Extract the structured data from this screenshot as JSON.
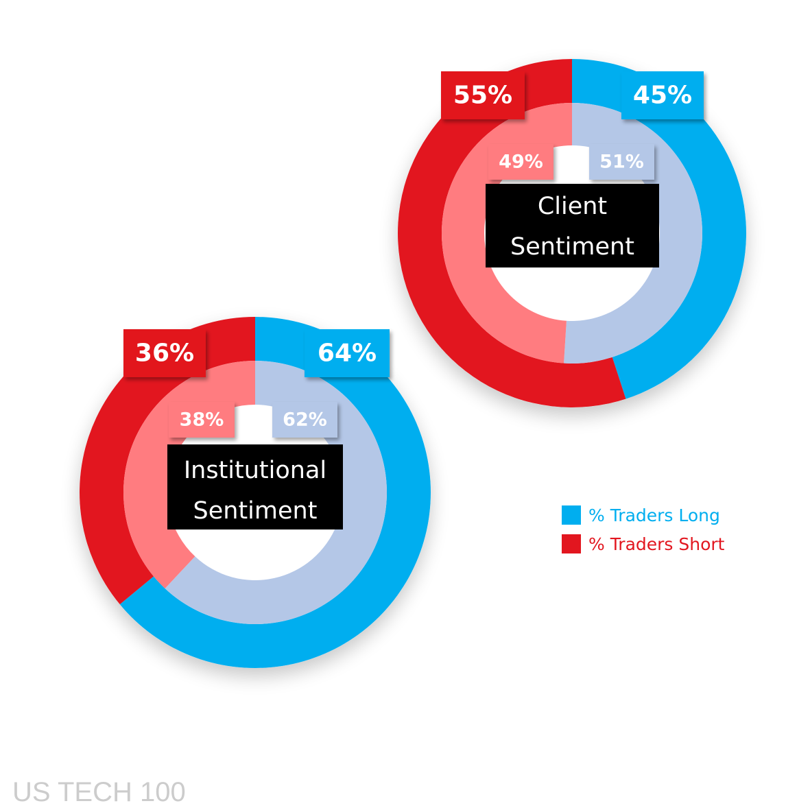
{
  "colors": {
    "long_outer": "#00aeef",
    "short_outer": "#e2161f",
    "long_inner": "#b4c7e7",
    "short_inner": "#ff7c80",
    "center_box": "#000000",
    "footer": "#cccccc"
  },
  "legend": {
    "placement": "right",
    "items": [
      {
        "label": "% Traders Long",
        "color": "#00aeef"
      },
      {
        "label": "% Traders Short",
        "color": "#e2161f"
      }
    ]
  },
  "footer": {
    "label": "US TECH 100"
  },
  "chart_data": [
    {
      "type": "pie",
      "subtype": "nested-donut",
      "center_label": [
        "Client",
        "Sentiment"
      ],
      "categories": [
        "% Traders Long",
        "% Traders Short"
      ],
      "series": [
        {
          "ring": "outer",
          "values": [
            45,
            55
          ],
          "labels": [
            "45%",
            "55%"
          ]
        },
        {
          "ring": "inner",
          "values": [
            51,
            49
          ],
          "labels": [
            "51%",
            "49%"
          ]
        }
      ]
    },
    {
      "type": "pie",
      "subtype": "nested-donut",
      "center_label": [
        "Institutional",
        "Sentiment"
      ],
      "categories": [
        "% Traders Long",
        "% Traders Short"
      ],
      "series": [
        {
          "ring": "outer",
          "values": [
            64,
            36
          ],
          "labels": [
            "64%",
            "36%"
          ]
        },
        {
          "ring": "inner",
          "values": [
            62,
            38
          ],
          "labels": [
            "62%",
            "38%"
          ]
        }
      ]
    }
  ]
}
